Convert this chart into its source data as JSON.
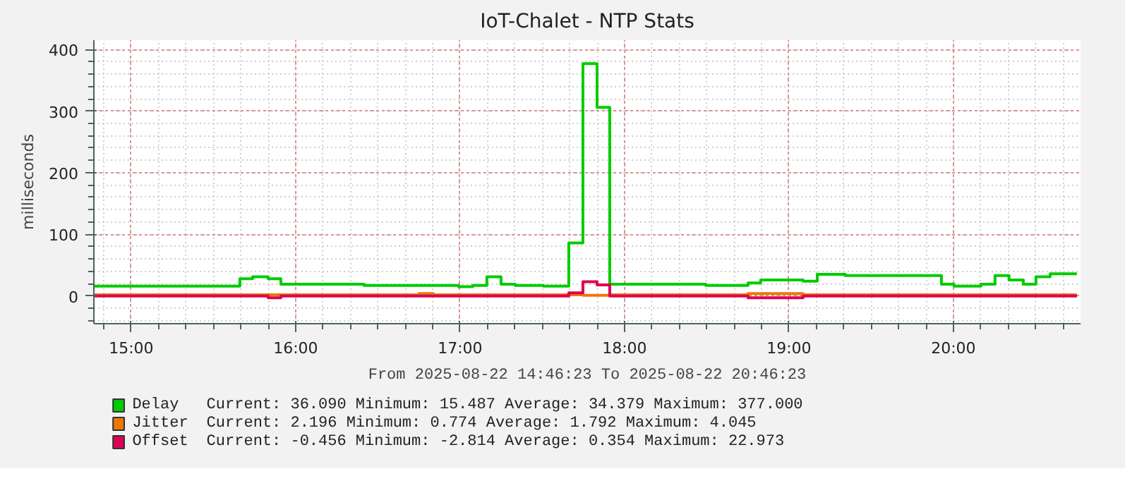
{
  "chart_data": {
    "type": "step",
    "title": "IoT-Chalet - NTP Stats",
    "xlabel": "From 2025-08-22 14:46:23 To 2025-08-22 20:46:23",
    "ylabel": "milliseconds",
    "xlim": [
      14.773,
      20.773
    ],
    "xticks": [
      {
        "value": 15,
        "label": "15:00"
      },
      {
        "value": 16,
        "label": "16:00"
      },
      {
        "value": 17,
        "label": "17:00"
      },
      {
        "value": 18,
        "label": "18:00"
      },
      {
        "value": 19,
        "label": "19:00"
      },
      {
        "value": 20,
        "label": "20:00"
      }
    ],
    "ylim": [
      -45,
      415
    ],
    "yticks": [
      0,
      100,
      200,
      300,
      400
    ],
    "grid": true,
    "legend": "bottom",
    "series": [
      {
        "name": "Delay",
        "color": "#00cc00",
        "x": [
          14.773,
          15.661,
          15.738,
          15.833,
          15.91,
          16.416,
          16.991,
          17.077,
          17.163,
          17.249,
          17.335,
          17.506,
          17.661,
          17.747,
          17.833,
          17.91,
          18.494,
          18.751,
          18.828,
          19.086,
          19.172,
          19.343,
          19.927,
          20.004,
          20.167,
          20.253,
          20.338,
          20.425,
          20.502,
          20.588,
          20.751
        ],
        "values": [
          16,
          28,
          31,
          28,
          19,
          17,
          15,
          17,
          31,
          19,
          17,
          16,
          86,
          377,
          306,
          19,
          17,
          21,
          26,
          24,
          35,
          33,
          19,
          16,
          19,
          33,
          26,
          19,
          31,
          36,
          36
        ]
      },
      {
        "name": "Jitter",
        "color": "#ee7700",
        "x": [
          14.773,
          16.751,
          16.837,
          17.747,
          17.91,
          18.751,
          19.086,
          20.751
        ],
        "values": [
          2,
          4,
          2,
          1,
          2,
          4,
          2,
          2
        ]
      },
      {
        "name": "Offset",
        "color": "#dd0055",
        "x": [
          14.773,
          15.833,
          15.91,
          17.661,
          17.747,
          17.833,
          17.91,
          18.751,
          19.086,
          20.751
        ],
        "values": [
          0,
          -3,
          0,
          5,
          23,
          18,
          0,
          -3,
          0,
          0
        ]
      }
    ],
    "annotations": [
      "Current: 36.090   Minimum: 15.487   Average: 34.379   Maximum: 377.000",
      "Current: 2.196   Minimum: 0.774   Average: 1.792   Maximum: 4.045",
      "Current: -0.456   Minimum: -2.814   Average: 0.354   Maximum: 22.973"
    ]
  }
}
